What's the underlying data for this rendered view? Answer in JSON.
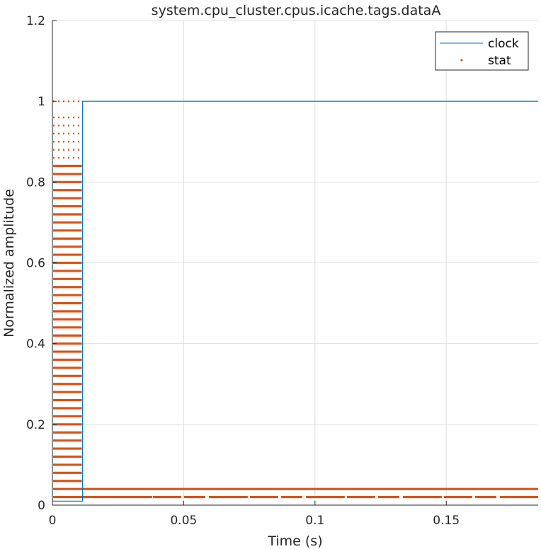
{
  "chart_data": {
    "type": "line",
    "title": "system.cpu_cluster.cpus.icache.tags.dataA",
    "xlabel": "Time (s)",
    "ylabel": "Normalized amplitude",
    "xlim": [
      0,
      0.185
    ],
    "ylim": [
      0,
      1.2
    ],
    "xticks": [
      0,
      0.05,
      0.1,
      0.15
    ],
    "xtick_labels": [
      "0",
      "0.05",
      "0.1",
      "0.15"
    ],
    "yticks": [
      0,
      0.2,
      0.4,
      0.6,
      0.8,
      1.0,
      1.2
    ],
    "ytick_labels": [
      "0",
      "0.2",
      "0.4",
      "0.6",
      "0.8",
      "1",
      "1.2"
    ],
    "grid": true,
    "legend_position": "top-right",
    "legend": [
      "clock",
      "stat"
    ],
    "colors": {
      "clock": "#0072BD",
      "stat": "#D95319",
      "grid": "#dfdfdf",
      "axis": "#262626"
    },
    "series": [
      {
        "name": "clock",
        "kind": "step-line",
        "x": [
          0,
          0.0115,
          0.0115,
          0.185
        ],
        "y": [
          0.01,
          0.01,
          1.0,
          1.0
        ]
      },
      {
        "name": "stat",
        "kind": "dotted-bands",
        "dense_segments": [
          {
            "y": 0.04,
            "x": [
              0,
              0.185
            ]
          },
          {
            "y": 0.02,
            "x": [
              0,
              0.038
            ]
          },
          {
            "y": 0.02,
            "x": [
              0.038,
              0.185
            ],
            "dashed": true
          }
        ],
        "burst_x": [
          0,
          0.0115
        ],
        "burst_levels": [
          0.06,
          0.08,
          0.1,
          0.12,
          0.14,
          0.16,
          0.18,
          0.2,
          0.22,
          0.24,
          0.26,
          0.28,
          0.3,
          0.32,
          0.34,
          0.36,
          0.38,
          0.4,
          0.42,
          0.44,
          0.46,
          0.48,
          0.5,
          0.52,
          0.54,
          0.56,
          0.58,
          0.6,
          0.62,
          0.64,
          0.66,
          0.68,
          0.7,
          0.72,
          0.74,
          0.76,
          0.78,
          0.8,
          0.82,
          0.84,
          0.86,
          0.88,
          0.9,
          0.92,
          0.94,
          0.96,
          1.0
        ]
      }
    ]
  }
}
